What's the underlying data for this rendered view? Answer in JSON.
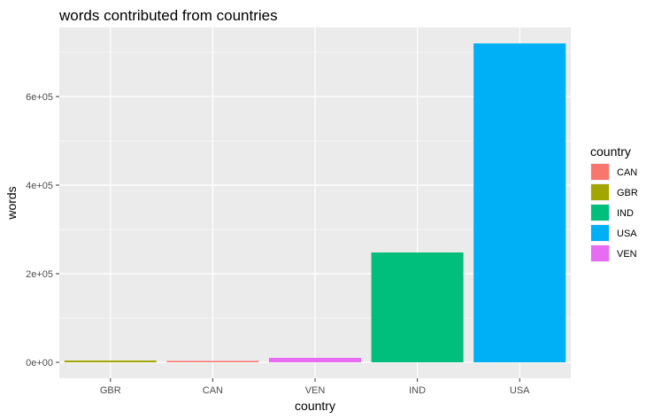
{
  "chart_data": {
    "type": "bar",
    "title": "words contributed from countries",
    "xlabel": "country",
    "ylabel": "words",
    "categories": [
      "GBR",
      "CAN",
      "VEN",
      "IND",
      "USA"
    ],
    "values": [
      4000,
      3000,
      10000,
      248000,
      720000
    ],
    "ylim": [
      -36000,
      756000
    ],
    "yticks": [
      {
        "value": 0,
        "label": "0e+00"
      },
      {
        "value": 200000,
        "label": "2e+05"
      },
      {
        "value": 400000,
        "label": "4e+05"
      },
      {
        "value": 600000,
        "label": "6e+05"
      }
    ],
    "grid": true,
    "legend": {
      "title": "country",
      "placement": "right",
      "entries": [
        {
          "label": "CAN",
          "color": "#F8766D"
        },
        {
          "label": "GBR",
          "color": "#A3A500"
        },
        {
          "label": "IND",
          "color": "#00BF7D"
        },
        {
          "label": "USA",
          "color": "#00B0F6"
        },
        {
          "label": "VEN",
          "color": "#E76BF3"
        }
      ]
    },
    "colors": {
      "GBR": "#A3A500",
      "CAN": "#F8766D",
      "VEN": "#E76BF3",
      "IND": "#00BF7D",
      "USA": "#00B0F6"
    },
    "panel_background": "#EBEBEB",
    "gridline_color": "#FFFFFF"
  }
}
